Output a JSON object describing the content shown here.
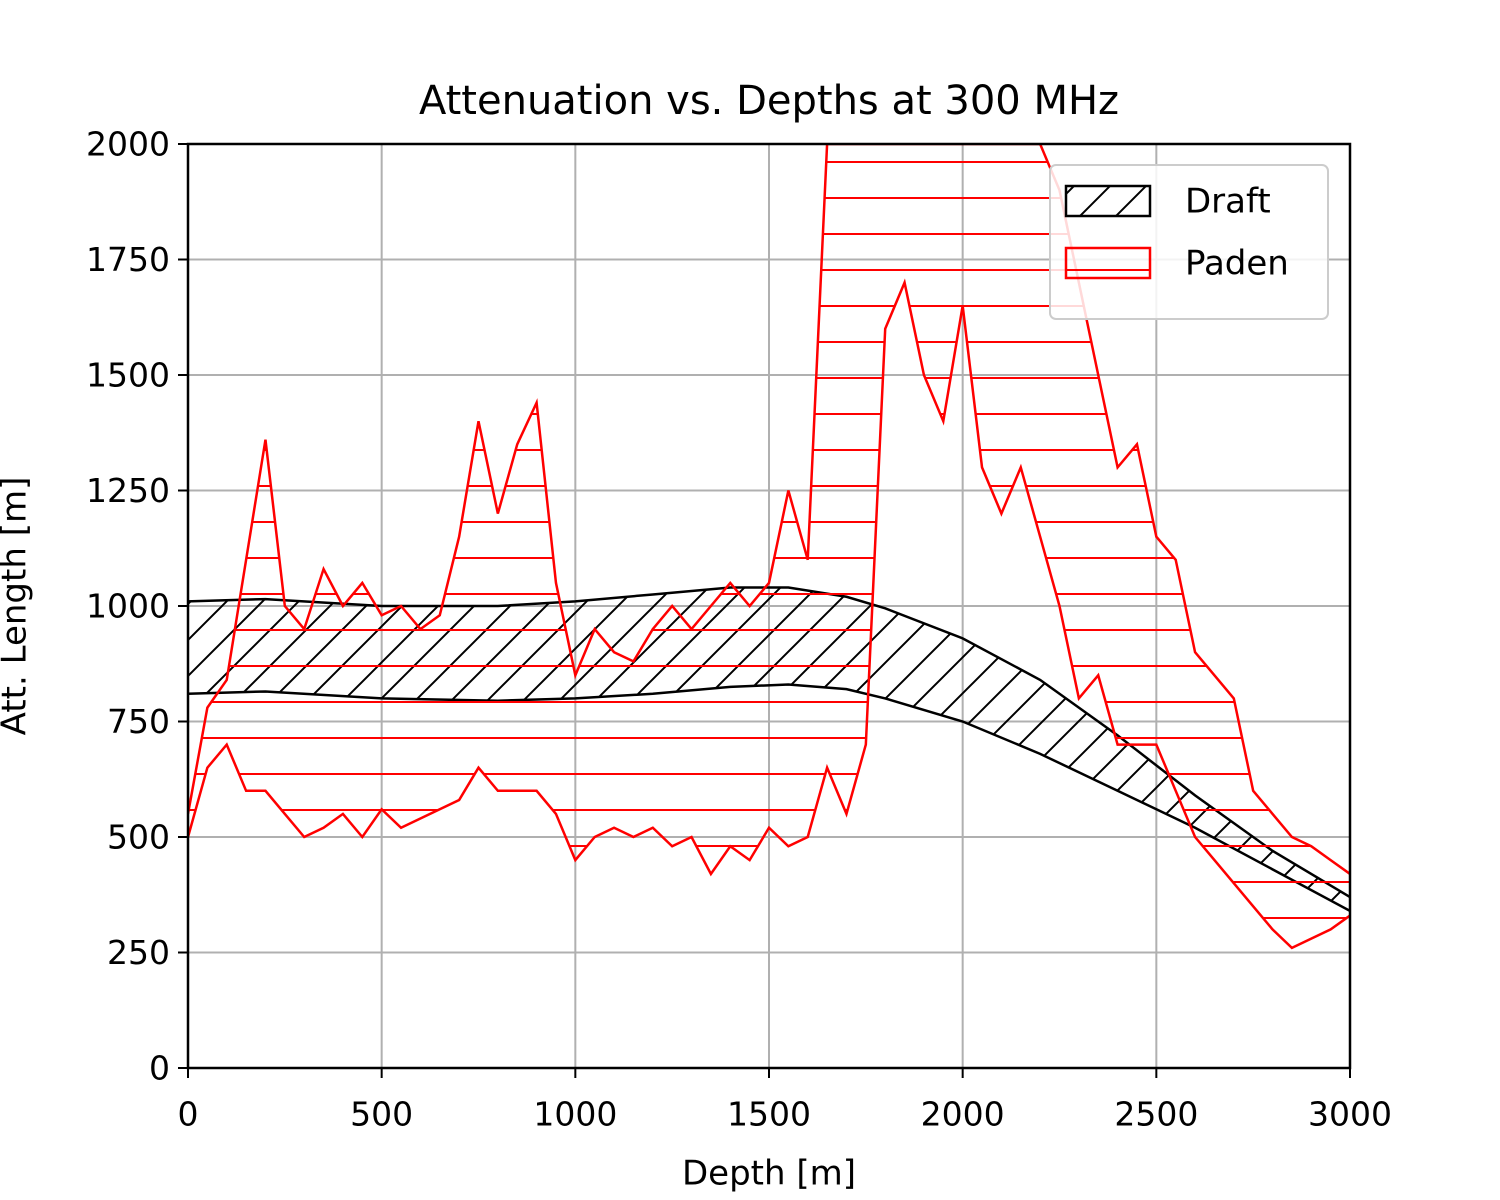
{
  "chart_data": {
    "type": "fill_between",
    "title": "Attenuation vs. Depths at 300 MHz",
    "x_label": "Depth [m]",
    "y_label": "Att. Length [m]",
    "xlim": [
      0,
      3000
    ],
    "xticks": [
      0,
      500,
      1000,
      1500,
      2000,
      2500,
      3000
    ],
    "ylim": [
      0,
      2000
    ],
    "yticks": [
      0,
      250,
      500,
      750,
      1000,
      1250,
      1500,
      1750,
      2000
    ],
    "grid": true,
    "legend": "upper right",
    "series": [
      {
        "name": "Draft",
        "color": "#000000",
        "hatch": "/",
        "x": [
          0,
          200,
          500,
          800,
          1000,
          1200,
          1400,
          1550,
          1700,
          1800,
          2000,
          2200,
          2400,
          2600,
          2800,
          3000
        ],
        "upper": [
          1010,
          1015,
          1000,
          1000,
          1010,
          1025,
          1040,
          1040,
          1020,
          995,
          930,
          840,
          720,
          590,
          470,
          370
        ],
        "lower": [
          810,
          815,
          800,
          795,
          800,
          810,
          825,
          830,
          820,
          800,
          750,
          680,
          600,
          520,
          430,
          340
        ]
      },
      {
        "name": "Paden",
        "color": "#ff0000",
        "hatch": "-",
        "x": [
          0,
          50,
          100,
          150,
          200,
          250,
          300,
          350,
          400,
          450,
          500,
          550,
          600,
          650,
          700,
          750,
          800,
          850,
          900,
          950,
          1000,
          1050,
          1100,
          1150,
          1200,
          1250,
          1300,
          1350,
          1400,
          1450,
          1500,
          1550,
          1600,
          1650,
          1700,
          1750,
          1800,
          1850,
          1900,
          1950,
          2000,
          2050,
          2100,
          2150,
          2200,
          2250,
          2300,
          2350,
          2400,
          2450,
          2500,
          2550,
          2600,
          2650,
          2700,
          2750,
          2800,
          2850,
          2900,
          2950,
          3000
        ],
        "upper": [
          550,
          780,
          840,
          1100,
          1360,
          1000,
          950,
          1080,
          1000,
          1050,
          980,
          1000,
          950,
          980,
          1150,
          1400,
          1200,
          1350,
          1440,
          1050,
          850,
          950,
          900,
          880,
          950,
          1000,
          950,
          1000,
          1050,
          1000,
          1050,
          1250,
          1100,
          2000,
          2000,
          2000,
          2000,
          2000,
          2000,
          2000,
          2000,
          2000,
          2000,
          2000,
          2000,
          1900,
          1700,
          1500,
          1300,
          1350,
          1150,
          1100,
          900,
          850,
          800,
          600,
          550,
          500,
          480,
          450,
          420
        ],
        "lower": [
          500,
          650,
          700,
          600,
          600,
          550,
          500,
          520,
          550,
          500,
          560,
          520,
          540,
          560,
          580,
          650,
          600,
          600,
          600,
          550,
          450,
          500,
          520,
          500,
          520,
          480,
          500,
          420,
          480,
          450,
          520,
          480,
          500,
          650,
          550,
          700,
          1600,
          1700,
          1500,
          1400,
          1650,
          1300,
          1200,
          1300,
          1150,
          1000,
          800,
          850,
          700,
          700,
          700,
          600,
          500,
          450,
          400,
          350,
          300,
          260,
          280,
          300,
          330
        ]
      }
    ]
  }
}
